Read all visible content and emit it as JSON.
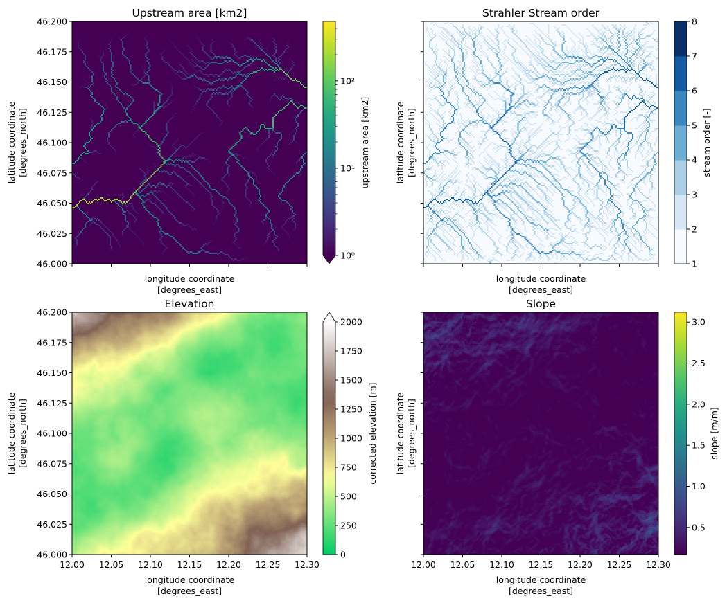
{
  "axes": {
    "xtick_labels": [
      "12.00",
      "12.05",
      "12.10",
      "12.15",
      "12.20",
      "12.25",
      "12.30"
    ],
    "ytick_labels": [
      "46.000",
      "46.025",
      "46.050",
      "46.075",
      "46.100",
      "46.125",
      "46.150",
      "46.175",
      "46.200"
    ],
    "xlim": [
      12.0,
      12.3
    ],
    "ylim": [
      46.0,
      46.2
    ]
  },
  "chart_data": [
    {
      "type": "heatmap",
      "title": "Upstream area [km2]",
      "xlabel": "longitude coordinate",
      "xlabel_units": "[degrees_east]",
      "ylabel": "latitude coordinate",
      "ylabel_units": "[degrees_north]",
      "show_xticklabels": false,
      "show_yticklabels": true,
      "colorbar": {
        "label": "upstream area [km2]",
        "cmap": "viridis",
        "scale": "log",
        "range": [
          1,
          480
        ],
        "ticks": [
          1,
          10,
          100
        ],
        "tick_labels": [
          "10⁰",
          "10¹",
          "10²"
        ],
        "extend": "min",
        "colors": [
          "#440154",
          "#fde725"
        ]
      }
    },
    {
      "type": "heatmap",
      "title": "Strahler Stream order",
      "xlabel": "longitude coordinate",
      "xlabel_units": "[degrees_east]",
      "ylabel": "latitude coordinate",
      "ylabel_units": "[degrees_north]",
      "show_xticklabels": false,
      "show_yticklabels": false,
      "colorbar": {
        "label": "stream order [-]",
        "cmap": "Blues",
        "scale": "discrete",
        "range": [
          1,
          8
        ],
        "ticks": [
          1,
          2,
          3,
          4,
          5,
          6,
          7,
          8
        ],
        "tick_labels": [
          "1",
          "2",
          "3",
          "4",
          "5",
          "6",
          "7",
          "8"
        ],
        "extend": "neither",
        "colors": [
          "#f7fbff",
          "#d6e6f4",
          "#abd0e6",
          "#6aaed6",
          "#3787c0",
          "#105ba4",
          "#08306b"
        ]
      }
    },
    {
      "type": "heatmap",
      "title": "Elevation",
      "xlabel": "longitude coordinate",
      "xlabel_units": "[degrees_east]",
      "ylabel": "latitude coordinate",
      "ylabel_units": "[degrees_north]",
      "show_xticklabels": true,
      "show_yticklabels": true,
      "colorbar": {
        "label": "corrected elevation [m]",
        "cmap": "terrain",
        "scale": "linear",
        "range": [
          0,
          2000
        ],
        "ticks": [
          0,
          250,
          500,
          750,
          1000,
          1250,
          1500,
          1750,
          2000
        ],
        "tick_labels": [
          "0",
          "250",
          "500",
          "750",
          "1000",
          "1250",
          "1500",
          "1750",
          "2000"
        ],
        "extend": "max",
        "colors": [
          "#00cc66",
          "#ffff99",
          "#806054",
          "#ffffff"
        ]
      }
    },
    {
      "type": "heatmap",
      "title": "Slope",
      "xlabel": "longitude coordinate",
      "xlabel_units": "[degrees_east]",
      "ylabel": "latitude coordinate",
      "ylabel_units": "[degrees_north]",
      "show_xticklabels": true,
      "show_yticklabels": false,
      "colorbar": {
        "label": "slope [m/m]",
        "cmap": "viridis",
        "scale": "linear",
        "range": [
          0.17,
          3.12
        ],
        "ticks": [
          0.5,
          1.0,
          1.5,
          2.0,
          2.5,
          3.0
        ],
        "tick_labels": [
          "0.5",
          "1.0",
          "1.5",
          "2.0",
          "2.5",
          "3.0"
        ],
        "extend": "neither",
        "colors": [
          "#440154",
          "#fde725"
        ]
      }
    }
  ]
}
